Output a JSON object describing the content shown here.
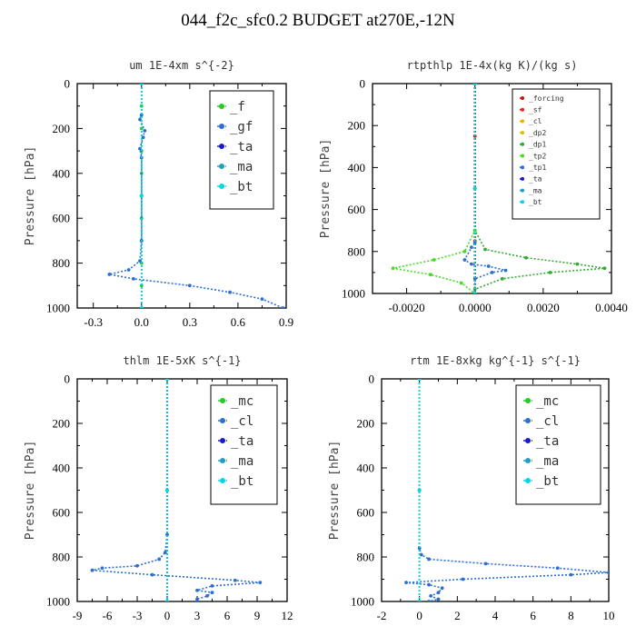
{
  "page": {
    "title": "044_f2c_sfc0.2  BUDGET at270E,-12N"
  },
  "chart_data": [
    {
      "type": "line",
      "title": "um   1E-4xm s^{-2}",
      "ylabel": "Pressure [hPa]",
      "xlim": [
        -0.4,
        0.9
      ],
      "ylim": [
        1000,
        0
      ],
      "xticks": [
        -0.3,
        0.0,
        0.3,
        0.6,
        0.9
      ],
      "xtick_labels": [
        "-0.3",
        "0.0",
        "0.3",
        "0.6",
        "0.9"
      ],
      "yticks": [
        0,
        200,
        400,
        600,
        800,
        1000
      ],
      "ytick_labels": [
        "0",
        "200",
        "400",
        "600",
        "800",
        "1000"
      ],
      "legend": {
        "position": "top-right",
        "size": "large"
      },
      "series": [
        {
          "name": "_f",
          "color": "#22cc22",
          "points": [
            [
              0,
              0
            ],
            [
              0,
              100
            ],
            [
              0,
              200
            ],
            [
              0,
              300
            ],
            [
              0,
              400
            ],
            [
              0,
              500
            ],
            [
              0,
              600
            ],
            [
              0,
              700
            ],
            [
              0,
              800
            ],
            [
              0,
              900
            ],
            [
              0,
              1000
            ]
          ]
        },
        {
          "name": "_gf",
          "color": "#2d6fd0",
          "points": [
            [
              0.0,
              0
            ],
            [
              0.0,
              140
            ],
            [
              -0.01,
              160
            ],
            [
              0.02,
              210
            ],
            [
              0.01,
              240
            ],
            [
              -0.01,
              290
            ],
            [
              0.0,
              330
            ],
            [
              0.0,
              500
            ],
            [
              0.0,
              700
            ],
            [
              -0.01,
              790
            ],
            [
              -0.08,
              830
            ],
            [
              -0.2,
              850
            ],
            [
              -0.05,
              870
            ],
            [
              0.3,
              900
            ],
            [
              0.55,
              930
            ],
            [
              0.75,
              960
            ],
            [
              0.88,
              1000
            ]
          ]
        },
        {
          "name": "_ta",
          "color": "#1a1acc",
          "points": [
            [
              0,
              0
            ],
            [
              0,
              500
            ],
            [
              0,
              1000
            ]
          ]
        },
        {
          "name": "_ma",
          "color": "#20a0c0",
          "points": [
            [
              0,
              0
            ],
            [
              0,
              500
            ],
            [
              0,
              1000
            ]
          ]
        },
        {
          "name": "_bt",
          "color": "#00d8e8",
          "points": [
            [
              0,
              0
            ],
            [
              0,
              500
            ],
            [
              0,
              1000
            ]
          ]
        }
      ]
    },
    {
      "type": "line",
      "title": "rtpthlp   1E-4x(kg K)/(kg s)",
      "ylabel": "Pressure [hPa]",
      "xlim": [
        -0.003,
        0.004
      ],
      "ylim": [
        1000,
        0
      ],
      "xticks": [
        -0.002,
        0.0,
        0.002,
        0.004
      ],
      "xtick_labels": [
        "-0.0020",
        "0.0000",
        "0.0020",
        "0.0040"
      ],
      "yticks": [
        0,
        200,
        400,
        600,
        800,
        1000
      ],
      "ytick_labels": [
        "0",
        "200",
        "400",
        "600",
        "800",
        "1000"
      ],
      "legend": {
        "position": "top-right",
        "size": "small"
      },
      "series": [
        {
          "name": "_forcing",
          "color": "#cc1111",
          "points": [
            [
              0,
              0
            ],
            [
              0,
              250
            ],
            [
              0,
              500
            ],
            [
              0,
              750
            ],
            [
              0,
              1000
            ]
          ]
        },
        {
          "name": "_sf",
          "color": "#ee2222",
          "points": [
            [
              0,
              0
            ],
            [
              0,
              500
            ],
            [
              0,
              1000
            ]
          ]
        },
        {
          "name": "_cl",
          "color": "#e8b000",
          "points": [
            [
              0,
              0
            ],
            [
              0,
              500
            ],
            [
              0,
              1000
            ]
          ]
        },
        {
          "name": "_dp2",
          "color": "#d8c000",
          "points": [
            [
              0,
              0
            ],
            [
              0,
              500
            ],
            [
              0,
              1000
            ]
          ]
        },
        {
          "name": "_dp1",
          "color": "#33aa33",
          "points": [
            [
              0,
              0
            ],
            [
              0,
              700
            ],
            [
              0.0003,
              790
            ],
            [
              0.0015,
              830
            ],
            [
              0.003,
              860
            ],
            [
              0.0038,
              880
            ],
            [
              0.0022,
              900
            ],
            [
              0.0008,
              930
            ],
            [
              0,
              980
            ],
            [
              0,
              1000
            ]
          ]
        },
        {
          "name": "_tp2",
          "color": "#44dd22",
          "points": [
            [
              0,
              0
            ],
            [
              0,
              700
            ],
            [
              -0.0003,
              800
            ],
            [
              -0.0012,
              840
            ],
            [
              -0.0024,
              880
            ],
            [
              -0.0013,
              910
            ],
            [
              -0.0004,
              950
            ],
            [
              0,
              1000
            ]
          ]
        },
        {
          "name": "_tp1",
          "color": "#2d6fd0",
          "points": [
            [
              0,
              0
            ],
            [
              0,
              760
            ],
            [
              -0.0001,
              780
            ],
            [
              -0.0003,
              840
            ],
            [
              -0.0001,
              860
            ],
            [
              0.0004,
              870
            ],
            [
              0.0009,
              890
            ],
            [
              0.0005,
              900
            ],
            [
              0,
              930
            ],
            [
              0,
              1000
            ]
          ]
        },
        {
          "name": "_ta",
          "color": "#1a1acc",
          "points": [
            [
              0,
              0
            ],
            [
              0,
              500
            ],
            [
              0,
              1000
            ]
          ]
        },
        {
          "name": "_ma",
          "color": "#20a0c0",
          "points": [
            [
              0,
              0
            ],
            [
              0,
              500
            ],
            [
              0,
              1000
            ]
          ]
        },
        {
          "name": "_bt",
          "color": "#00d8e8",
          "points": [
            [
              0,
              0
            ],
            [
              0,
              500
            ],
            [
              0,
              1000
            ]
          ]
        }
      ]
    },
    {
      "type": "line",
      "title": "thlm   1E-5xK s^{-1}",
      "ylabel": "Pressure [hPa]",
      "xlim": [
        -9,
        12
      ],
      "ylim": [
        1000,
        0
      ],
      "xticks": [
        -9,
        -6,
        -3,
        0,
        3,
        6,
        9,
        12
      ],
      "xtick_labels": [
        "-9",
        "-6",
        "-3",
        "0",
        "3",
        "6",
        "9",
        "12"
      ],
      "yticks": [
        0,
        200,
        400,
        600,
        800,
        1000
      ],
      "ytick_labels": [
        "0",
        "200",
        "400",
        "600",
        "800",
        "1000"
      ],
      "legend": {
        "position": "top-right",
        "size": "large"
      },
      "series": [
        {
          "name": "_mc",
          "color": "#22cc22",
          "points": [
            [
              0,
              0
            ],
            [
              0,
              500
            ],
            [
              0,
              1000
            ]
          ]
        },
        {
          "name": "_cl",
          "color": "#2d6fd0",
          "points": [
            [
              0,
              0
            ],
            [
              0,
              700
            ],
            [
              -0.2,
              780
            ],
            [
              -0.8,
              810
            ],
            [
              -3,
              840
            ],
            [
              -6.5,
              850
            ],
            [
              -7.5,
              860
            ],
            [
              -1.5,
              880
            ],
            [
              6.8,
              905
            ],
            [
              9.3,
              915
            ],
            [
              4.5,
              930
            ],
            [
              3,
              950
            ],
            [
              4.5,
              960
            ],
            [
              4,
              975
            ],
            [
              3,
              990
            ],
            [
              3,
              1000
            ]
          ]
        },
        {
          "name": "_ta",
          "color": "#1a1acc",
          "points": [
            [
              0,
              0
            ],
            [
              0,
              500
            ],
            [
              0,
              1000
            ]
          ]
        },
        {
          "name": "_ma",
          "color": "#20a0c0",
          "points": [
            [
              0,
              0
            ],
            [
              0,
              500
            ],
            [
              0,
              1000
            ]
          ]
        },
        {
          "name": "_bt",
          "color": "#00d8e8",
          "points": [
            [
              0,
              0
            ],
            [
              0,
              500
            ],
            [
              0,
              1000
            ]
          ]
        }
      ]
    },
    {
      "type": "line",
      "title": "rtm   1E-8xkg kg^{-1} s^{-1}",
      "ylabel": "Pressure [hPa]",
      "xlim": [
        -2,
        10
      ],
      "ylim": [
        1000,
        0
      ],
      "xticks": [
        -2,
        0,
        2,
        4,
        6,
        8,
        10
      ],
      "xtick_labels": [
        "-2",
        "0",
        "2",
        "4",
        "6",
        "8",
        "10"
      ],
      "yticks": [
        0,
        200,
        400,
        600,
        800,
        1000
      ],
      "ytick_labels": [
        "0",
        "200",
        "400",
        "600",
        "800",
        "1000"
      ],
      "legend": {
        "position": "top-right",
        "size": "large"
      },
      "series": [
        {
          "name": "_mc",
          "color": "#22cc22",
          "points": [
            [
              0,
              0
            ],
            [
              0,
              500
            ],
            [
              0,
              1000
            ]
          ]
        },
        {
          "name": "_cl",
          "color": "#2d6fd0",
          "points": [
            [
              0,
              0
            ],
            [
              0,
              760
            ],
            [
              0.1,
              790
            ],
            [
              0.5,
              810
            ],
            [
              3.5,
              830
            ],
            [
              7.3,
              850
            ],
            [
              10,
              870
            ],
            [
              8,
              880
            ],
            [
              2.3,
              900
            ],
            [
              -0.7,
              915
            ],
            [
              0.5,
              925
            ],
            [
              1.2,
              940
            ],
            [
              1,
              960
            ],
            [
              0.6,
              975
            ],
            [
              1,
              990
            ],
            [
              0.5,
              1000
            ]
          ]
        },
        {
          "name": "_ta",
          "color": "#1a1acc",
          "points": [
            [
              0,
              0
            ],
            [
              0,
              500
            ],
            [
              0,
              1000
            ]
          ]
        },
        {
          "name": "_ma",
          "color": "#20a0c0",
          "points": [
            [
              0,
              0
            ],
            [
              0,
              500
            ],
            [
              0,
              1000
            ]
          ]
        },
        {
          "name": "_bt",
          "color": "#00d8e8",
          "points": [
            [
              0,
              0
            ],
            [
              0,
              500
            ],
            [
              0,
              1000
            ]
          ]
        }
      ]
    }
  ]
}
